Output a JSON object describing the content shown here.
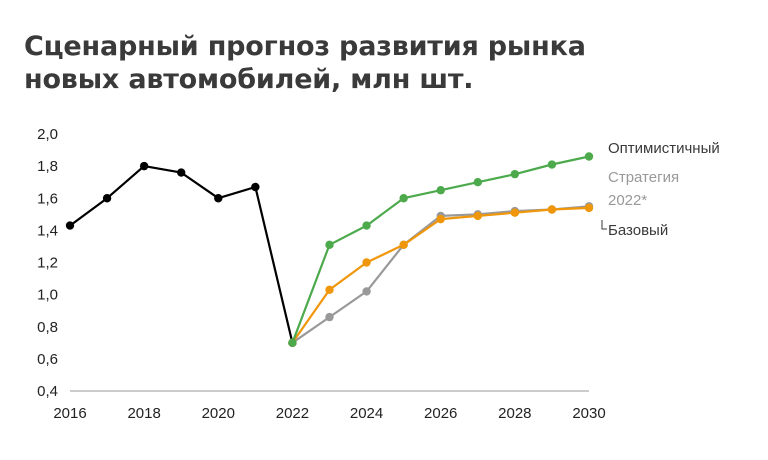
{
  "title_line1": "Сценарный прогноз развития рынка",
  "title_line2": "новых автомобилей, млн шт.",
  "colors": {
    "history": "#000000",
    "optimistic": "#4caa4c",
    "strategy": "#999999",
    "base": "#f0960a",
    "axis": "#999999",
    "label_dark": "#3a3a3a",
    "label_gray": "#999999"
  },
  "chart_data": {
    "type": "line",
    "title": "Сценарный прогноз развития рынка новых автомобилей, млн шт.",
    "xlabel": "",
    "ylabel": "",
    "xlim": [
      2016,
      2030
    ],
    "ylim": [
      0.4,
      2.0
    ],
    "x_ticks": [
      "2016",
      "2018",
      "2020",
      "2022",
      "2024",
      "2026",
      "2028",
      "2030"
    ],
    "y_ticks": [
      "0,4",
      "0,6",
      "0,8",
      "1,0",
      "1,2",
      "1,4",
      "1,6",
      "1,8",
      "2,0"
    ],
    "grid": false,
    "legend": "labels at line ends (right)",
    "series": [
      {
        "key": "history",
        "color": "#000000",
        "x": [
          2016,
          2017,
          2018,
          2019,
          2020,
          2021,
          2022
        ],
        "y": [
          1.43,
          1.6,
          1.8,
          1.76,
          1.6,
          1.67,
          0.7
        ]
      },
      {
        "key": "strategy",
        "name": "Стратегия 2022*",
        "color": "#999999",
        "x": [
          2022,
          2023,
          2024,
          2025,
          2026,
          2027,
          2028,
          2029,
          2030
        ],
        "y": [
          0.7,
          0.86,
          1.02,
          1.31,
          1.49,
          1.5,
          1.52,
          1.53,
          1.55
        ]
      },
      {
        "key": "base",
        "name": "Базовый",
        "color": "#f0960a",
        "x": [
          2022,
          2023,
          2024,
          2025,
          2026,
          2027,
          2028,
          2029,
          2030
        ],
        "y": [
          0.7,
          1.03,
          1.2,
          1.31,
          1.47,
          1.49,
          1.51,
          1.53,
          1.54
        ]
      },
      {
        "key": "optimistic",
        "name": "Оптимистичный",
        "color": "#4caa4c",
        "x": [
          2022,
          2023,
          2024,
          2025,
          2026,
          2027,
          2028,
          2029,
          2030
        ],
        "y": [
          0.7,
          1.31,
          1.43,
          1.6,
          1.65,
          1.7,
          1.75,
          1.81,
          1.86
        ]
      }
    ],
    "labels": {
      "optimistic": "Оптимистичный",
      "strategy_line1": "Стратегия",
      "strategy_line2": "2022*",
      "base": "Базовый"
    }
  }
}
